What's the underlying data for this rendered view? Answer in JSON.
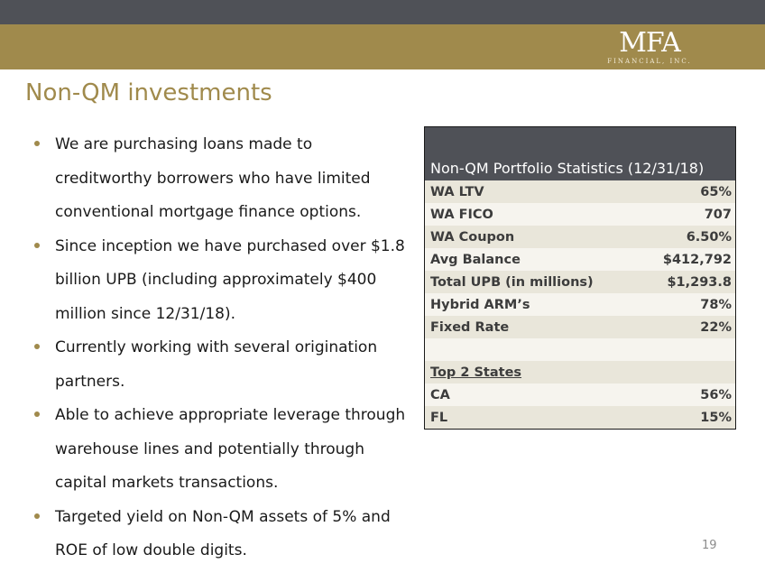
{
  "header": {
    "logo_text": "MFA",
    "logo_subtext": "FINANCIAL, INC.",
    "colors": {
      "dark_bar": "#4f5157",
      "gold_bar": "#a08a4c"
    }
  },
  "slide": {
    "title": "Non-QM investments",
    "page_number": "19"
  },
  "bullets": [
    {
      "lines": [
        "We are purchasing loans made to",
        "creditworthy borrowers who have limited",
        "conventional mortgage finance options."
      ]
    },
    {
      "lines": [
        "Since inception we have purchased over $1.8",
        "billion UPB (including approximately $400",
        "million since 12/31/18)."
      ]
    },
    {
      "lines": [
        "Currently working with several origination",
        "partners."
      ]
    },
    {
      "lines": [
        "Able to achieve appropriate leverage through",
        "warehouse lines and potentially through",
        "capital markets transactions."
      ]
    },
    {
      "lines": [
        "Targeted yield on Non-QM assets of 5% and",
        "ROE of low double digits."
      ]
    }
  ],
  "stats_table": {
    "header": "Non-QM Portfolio Statistics (12/31/18)",
    "rows": [
      {
        "label": "WA LTV",
        "value": "65%"
      },
      {
        "label": "WA FICO",
        "value": "707"
      },
      {
        "label": "WA Coupon",
        "value": "6.50%"
      },
      {
        "label": "Avg Balance",
        "value": "$412,792"
      },
      {
        "label": "Total UPB (in millions)",
        "value": "$1,293.8"
      },
      {
        "label": "Hybrid ARM’s",
        "value": "78%"
      },
      {
        "label": "Fixed Rate",
        "value": "22%"
      },
      {
        "label": "",
        "value": ""
      },
      {
        "label": "Top 2 States",
        "value": ""
      },
      {
        "label": "CA",
        "value": "56%"
      },
      {
        "label": "FL",
        "value": "15%"
      }
    ]
  }
}
